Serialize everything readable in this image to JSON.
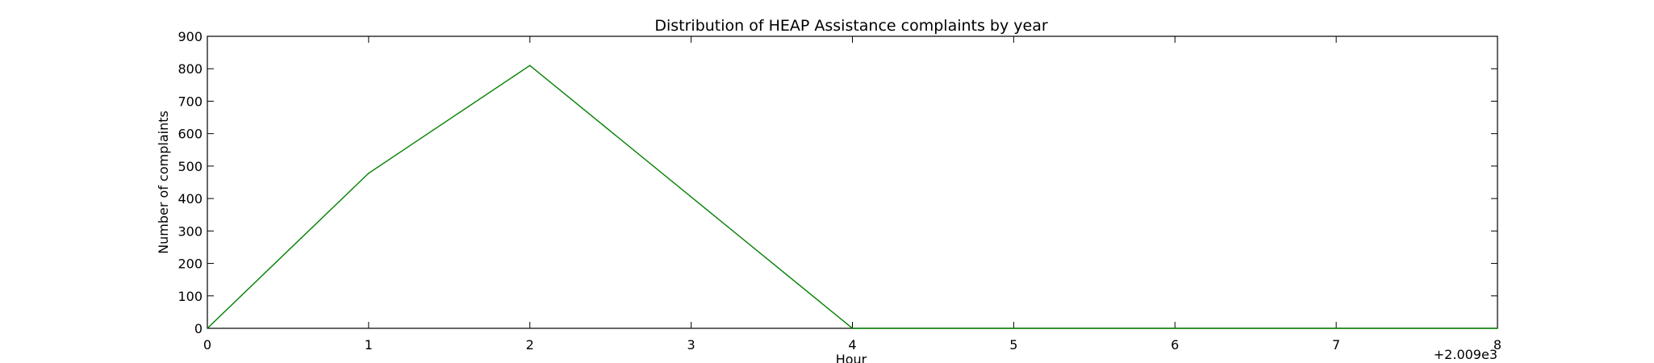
{
  "chart_data": {
    "type": "line",
    "title": "Distribution of  HEAP Assistance complaints by year",
    "xlabel": "Hour",
    "ylabel": "Number of complaints",
    "x_offset_label": "+2.009e3",
    "xlim": [
      0,
      8
    ],
    "ylim": [
      0,
      900
    ],
    "x_ticks": [
      0,
      1,
      2,
      3,
      4,
      5,
      6,
      7,
      8
    ],
    "y_ticks": [
      0,
      100,
      200,
      300,
      400,
      500,
      600,
      700,
      800,
      900
    ],
    "grid": false,
    "series": [
      {
        "color": "#008000",
        "x": [
          0,
          1,
          2,
          4,
          5,
          6,
          7,
          8
        ],
        "y": [
          0,
          478,
          810,
          0,
          0,
          0,
          0,
          0
        ]
      }
    ]
  }
}
